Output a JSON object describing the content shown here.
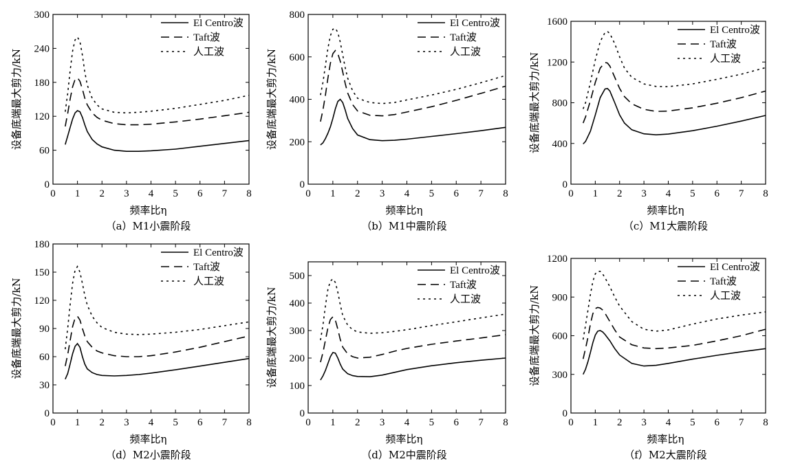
{
  "chart_data": [
    {
      "type": "line",
      "caption": "（a）M1小震阶段",
      "xlabel": "频率比η",
      "ylabel": "设备底端最大剪力/kN",
      "xlim": [
        0,
        8
      ],
      "ylim": [
        0,
        300
      ],
      "xticks": [
        0,
        1,
        2,
        3,
        4,
        5,
        6,
        7,
        8
      ],
      "yticks": [
        0,
        60,
        120,
        180,
        240,
        300
      ],
      "legend_position": "top-right",
      "series": [
        {
          "name": "El Centro波",
          "style": "solid",
          "x": [
            0.5,
            0.6,
            0.7,
            0.8,
            0.9,
            1.0,
            1.1,
            1.2,
            1.3,
            1.4,
            1.6,
            1.8,
            2.0,
            2.5,
            3.0,
            3.5,
            4.0,
            5.0,
            6.0,
            7.0,
            8.0
          ],
          "y": [
            70,
            85,
            100,
            115,
            126,
            130,
            128,
            118,
            105,
            93,
            79,
            71,
            66,
            60,
            58,
            58,
            59,
            62,
            67,
            72,
            77
          ]
        },
        {
          "name": "Taft波",
          "style": "dashed",
          "x": [
            0.5,
            0.6,
            0.7,
            0.8,
            0.9,
            1.0,
            1.1,
            1.2,
            1.3,
            1.4,
            1.6,
            1.8,
            2.0,
            2.5,
            3.0,
            3.5,
            4.0,
            5.0,
            6.0,
            7.0,
            8.0
          ],
          "y": [
            102,
            125,
            150,
            172,
            185,
            188,
            182,
            168,
            152,
            140,
            126,
            118,
            113,
            107,
            105,
            105,
            106,
            110,
            115,
            121,
            127
          ]
        },
        {
          "name": "人工波",
          "style": "dotted",
          "x": [
            0.5,
            0.6,
            0.7,
            0.8,
            0.9,
            1.0,
            1.1,
            1.2,
            1.3,
            1.4,
            1.6,
            1.8,
            2.0,
            2.5,
            3.0,
            3.5,
            4.0,
            5.0,
            6.0,
            7.0,
            8.0
          ],
          "y": [
            128,
            160,
            200,
            235,
            255,
            260,
            252,
            228,
            198,
            175,
            152,
            140,
            133,
            127,
            126,
            127,
            129,
            134,
            141,
            148,
            157
          ]
        }
      ]
    },
    {
      "type": "line",
      "caption": "（b）M1中震阶段",
      "xlabel": "频率比η",
      "ylabel": "设备底端最大剪力/kN",
      "xlim": [
        0,
        8
      ],
      "ylim": [
        0,
        800
      ],
      "xticks": [
        0,
        1,
        2,
        3,
        4,
        5,
        6,
        7,
        8
      ],
      "yticks": [
        0,
        200,
        400,
        600,
        800
      ],
      "legend_position": "top-right",
      "series": [
        {
          "name": "El Centro波",
          "style": "solid",
          "x": [
            0.5,
            0.6,
            0.7,
            0.8,
            0.9,
            1.0,
            1.1,
            1.2,
            1.3,
            1.4,
            1.5,
            1.6,
            1.8,
            2.0,
            2.5,
            3.0,
            3.5,
            4.0,
            5.0,
            6.0,
            7.0,
            8.0
          ],
          "y": [
            185,
            195,
            215,
            240,
            270,
            310,
            355,
            390,
            400,
            385,
            350,
            310,
            262,
            232,
            210,
            205,
            207,
            212,
            225,
            238,
            252,
            268
          ]
        },
        {
          "name": "Taft波",
          "style": "dashed",
          "x": [
            0.5,
            0.6,
            0.7,
            0.8,
            0.9,
            1.0,
            1.1,
            1.2,
            1.3,
            1.4,
            1.5,
            1.6,
            1.8,
            2.0,
            2.5,
            3.0,
            3.5,
            4.0,
            5.0,
            6.0,
            7.0,
            8.0
          ],
          "y": [
            295,
            350,
            420,
            500,
            570,
            615,
            630,
            615,
            580,
            530,
            475,
            430,
            375,
            345,
            325,
            322,
            328,
            340,
            365,
            395,
            428,
            462
          ]
        },
        {
          "name": "人工波",
          "style": "dotted",
          "x": [
            0.5,
            0.6,
            0.7,
            0.8,
            0.9,
            1.0,
            1.1,
            1.2,
            1.3,
            1.4,
            1.5,
            1.6,
            1.8,
            2.0,
            2.5,
            3.0,
            3.5,
            4.0,
            5.0,
            6.0,
            7.0,
            8.0
          ],
          "y": [
            420,
            480,
            560,
            640,
            700,
            730,
            735,
            715,
            670,
            610,
            550,
            500,
            440,
            405,
            385,
            380,
            385,
            397,
            420,
            447,
            478,
            512
          ]
        }
      ]
    },
    {
      "type": "line",
      "caption": "（c）M1大震阶段",
      "xlabel": "频率比η",
      "ylabel": "设备底端最大剪力/kN",
      "xlim": [
        0,
        8
      ],
      "ylim": [
        0,
        1600
      ],
      "xticks": [
        0,
        1,
        2,
        3,
        4,
        5,
        6,
        7,
        8
      ],
      "yticks": [
        0,
        400,
        800,
        1200,
        1600
      ],
      "legend_position": "top-right",
      "series": [
        {
          "name": "El Centro波",
          "style": "solid",
          "x": [
            0.5,
            0.6,
            0.8,
            1.0,
            1.2,
            1.4,
            1.5,
            1.6,
            1.8,
            2.0,
            2.2,
            2.5,
            3.0,
            3.5,
            4.0,
            5.0,
            6.0,
            7.0,
            8.0
          ],
          "y": [
            395,
            420,
            520,
            680,
            850,
            935,
            940,
            915,
            800,
            680,
            600,
            535,
            495,
            485,
            492,
            525,
            570,
            620,
            675
          ]
        },
        {
          "name": "Taft波",
          "style": "dashed",
          "x": [
            0.5,
            0.6,
            0.8,
            1.0,
            1.2,
            1.4,
            1.5,
            1.6,
            1.8,
            2.0,
            2.2,
            2.5,
            3.0,
            3.5,
            4.0,
            5.0,
            6.0,
            7.0,
            8.0
          ],
          "y": [
            600,
            660,
            820,
            1000,
            1140,
            1195,
            1190,
            1160,
            1050,
            940,
            860,
            790,
            735,
            715,
            718,
            750,
            795,
            850,
            915
          ]
        },
        {
          "name": "人工波",
          "style": "dotted",
          "x": [
            0.5,
            0.6,
            0.8,
            1.0,
            1.2,
            1.4,
            1.5,
            1.6,
            1.8,
            2.0,
            2.2,
            2.5,
            3.0,
            3.5,
            4.0,
            5.0,
            6.0,
            7.0,
            8.0
          ],
          "y": [
            740,
            800,
            1000,
            1220,
            1400,
            1490,
            1500,
            1480,
            1380,
            1250,
            1140,
            1050,
            985,
            960,
            958,
            985,
            1030,
            1080,
            1145
          ]
        }
      ]
    },
    {
      "type": "line",
      "caption": "（d）M2小震阶段",
      "xlabel": "频率比η",
      "ylabel": "设备底端最大剪力/kN",
      "xlim": [
        0,
        8
      ],
      "ylim": [
        0,
        180
      ],
      "xticks": [
        0,
        1,
        2,
        3,
        4,
        5,
        6,
        7,
        8
      ],
      "yticks": [
        0,
        30,
        60,
        90,
        120,
        150,
        180
      ],
      "legend_position": "top-right",
      "series": [
        {
          "name": "El Centro波",
          "style": "solid",
          "x": [
            0.5,
            0.6,
            0.7,
            0.8,
            0.9,
            1.0,
            1.1,
            1.2,
            1.3,
            1.4,
            1.6,
            1.8,
            2.0,
            2.5,
            3.0,
            3.5,
            4.0,
            5.0,
            6.0,
            7.0,
            8.0
          ],
          "y": [
            36,
            42,
            52,
            63,
            71,
            74,
            70,
            60,
            52,
            47,
            43,
            41,
            40,
            39.5,
            40,
            41,
            42.5,
            46,
            50,
            54,
            58
          ]
        },
        {
          "name": "Taft波",
          "style": "dashed",
          "x": [
            0.5,
            0.6,
            0.7,
            0.8,
            0.9,
            1.0,
            1.1,
            1.2,
            1.3,
            1.4,
            1.6,
            1.8,
            2.0,
            2.5,
            3.0,
            3.5,
            4.0,
            5.0,
            6.0,
            7.0,
            8.0
          ],
          "y": [
            50,
            62,
            77,
            92,
            101,
            103,
            99,
            90,
            82,
            76,
            70,
            66,
            64,
            61,
            60,
            60,
            61,
            65,
            70,
            76,
            82
          ]
        },
        {
          "name": "人工波",
          "style": "dotted",
          "x": [
            0.5,
            0.6,
            0.7,
            0.8,
            0.9,
            1.0,
            1.1,
            1.2,
            1.3,
            1.4,
            1.6,
            1.8,
            2.0,
            2.5,
            3.0,
            3.5,
            4.0,
            5.0,
            6.0,
            7.0,
            8.0
          ],
          "y": [
            68,
            90,
            115,
            138,
            152,
            156,
            150,
            138,
            125,
            115,
            103,
            96,
            91,
            86,
            84,
            83.5,
            84,
            86,
            89,
            93,
            97
          ]
        }
      ]
    },
    {
      "type": "line",
      "caption": "（d）M2中震阶段",
      "xlabel": "频率比η",
      "ylabel": "设备底端最大剪力/kN",
      "xlim": [
        0,
        8
      ],
      "ylim": [
        0,
        550
      ],
      "xticks": [
        0,
        1,
        2,
        3,
        4,
        5,
        6,
        7,
        8
      ],
      "yticks": [
        0,
        100,
        200,
        300,
        400,
        500
      ],
      "legend_position": "top-right",
      "series": [
        {
          "name": "El Centro波",
          "style": "solid",
          "x": [
            0.5,
            0.6,
            0.7,
            0.8,
            0.9,
            1.0,
            1.1,
            1.2,
            1.3,
            1.4,
            1.6,
            1.8,
            2.0,
            2.5,
            3.0,
            3.5,
            4.0,
            5.0,
            6.0,
            7.0,
            8.0
          ],
          "y": [
            120,
            135,
            155,
            180,
            205,
            220,
            218,
            200,
            178,
            160,
            143,
            136,
            133,
            132,
            138,
            148,
            158,
            172,
            183,
            192,
            200
          ]
        },
        {
          "name": "Taft波",
          "style": "dashed",
          "x": [
            0.5,
            0.6,
            0.7,
            0.8,
            0.9,
            1.0,
            1.1,
            1.2,
            1.3,
            1.4,
            1.6,
            1.8,
            2.0,
            2.5,
            3.0,
            3.5,
            4.0,
            5.0,
            6.0,
            7.0,
            8.0
          ],
          "y": [
            185,
            220,
            265,
            310,
            340,
            350,
            338,
            305,
            268,
            240,
            215,
            205,
            200,
            203,
            213,
            225,
            235,
            250,
            262,
            273,
            285
          ]
        },
        {
          "name": "人工波",
          "style": "dotted",
          "x": [
            0.5,
            0.6,
            0.7,
            0.8,
            0.9,
            1.0,
            1.1,
            1.2,
            1.3,
            1.4,
            1.6,
            1.8,
            2.0,
            2.5,
            3.0,
            3.5,
            4.0,
            5.0,
            6.0,
            7.0,
            8.0
          ],
          "y": [
            265,
            320,
            390,
            450,
            480,
            488,
            475,
            440,
            395,
            355,
            320,
            303,
            295,
            290,
            292,
            297,
            303,
            318,
            332,
            346,
            360
          ]
        }
      ]
    },
    {
      "type": "line",
      "caption": "（f）M2大震阶段",
      "xlabel": "频率比η",
      "ylabel": "设备底端最大剪力/kN",
      "xlim": [
        0,
        8
      ],
      "ylim": [
        0,
        1200
      ],
      "xticks": [
        0,
        1,
        2,
        3,
        4,
        5,
        6,
        7,
        8
      ],
      "yticks": [
        0,
        300,
        600,
        900,
        1200
      ],
      "legend_position": "top-right",
      "series": [
        {
          "name": "El Centro波",
          "style": "solid",
          "x": [
            0.5,
            0.6,
            0.7,
            0.8,
            0.9,
            1.0,
            1.1,
            1.2,
            1.3,
            1.4,
            1.6,
            1.8,
            2.0,
            2.5,
            3.0,
            3.5,
            4.0,
            5.0,
            6.0,
            7.0,
            8.0
          ],
          "y": [
            300,
            340,
            400,
            470,
            545,
            605,
            635,
            640,
            630,
            610,
            560,
            500,
            450,
            385,
            365,
            370,
            385,
            418,
            448,
            475,
            500
          ]
        },
        {
          "name": "Taft波",
          "style": "dashed",
          "x": [
            0.5,
            0.6,
            0.7,
            0.8,
            0.9,
            1.0,
            1.1,
            1.2,
            1.3,
            1.4,
            1.6,
            1.8,
            2.0,
            2.5,
            3.0,
            3.5,
            4.0,
            5.0,
            6.0,
            7.0,
            8.0
          ],
          "y": [
            420,
            500,
            590,
            690,
            770,
            810,
            820,
            815,
            800,
            775,
            710,
            645,
            590,
            530,
            505,
            500,
            505,
            525,
            560,
            600,
            650
          ]
        },
        {
          "name": "人工波",
          "style": "dotted",
          "x": [
            0.5,
            0.6,
            0.7,
            0.8,
            0.9,
            1.0,
            1.1,
            1.2,
            1.3,
            1.4,
            1.6,
            1.8,
            2.0,
            2.5,
            3.0,
            3.5,
            4.0,
            5.0,
            6.0,
            7.0,
            8.0
          ],
          "y": [
            570,
            680,
            800,
            920,
            1020,
            1080,
            1100,
            1100,
            1080,
            1050,
            980,
            900,
            830,
            710,
            650,
            635,
            645,
            690,
            730,
            760,
            785
          ]
        }
      ]
    }
  ]
}
